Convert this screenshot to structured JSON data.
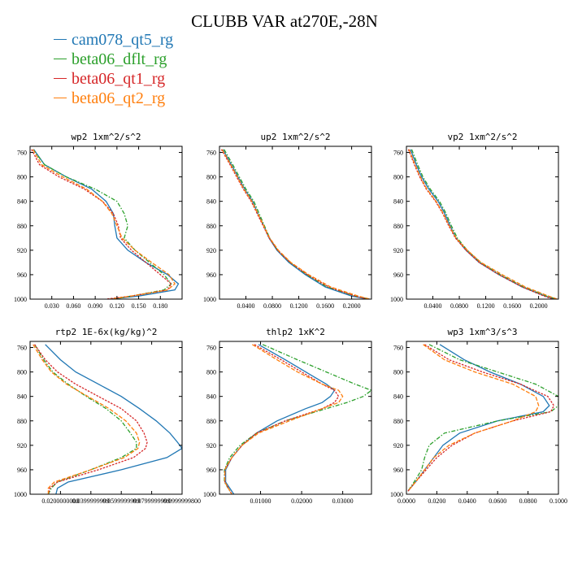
{
  "title": "CLUBB VAR at270E,-28N",
  "legend": [
    {
      "name": "cam078_qt5_rg",
      "color": "#2077b4"
    },
    {
      "name": "beta06_dflt_rg",
      "color": "#2ca02c"
    },
    {
      "name": "beta06_qt1_rg",
      "color": "#d62728"
    },
    {
      "name": "beta06_qt2_rg",
      "color": "#ff7f0e"
    }
  ],
  "chart_data": [
    {
      "type": "line",
      "title": "wp2   1xm^2/s^2",
      "xlim": [
        0.0,
        0.21
      ],
      "ylim": [
        1000,
        750
      ],
      "xticks": [
        "0.030",
        "0.060",
        "0.090",
        "0.120",
        "0.150",
        "0.180"
      ],
      "xtick_values": [
        0.03,
        0.06,
        0.09,
        0.12,
        0.15,
        0.18
      ],
      "yticks": [
        "760",
        "800",
        "840",
        "880",
        "920",
        "960",
        "1000"
      ],
      "y": [
        755,
        780,
        800,
        820,
        840,
        860,
        880,
        900,
        920,
        940,
        960,
        975,
        985,
        995,
        1000
      ],
      "series": [
        {
          "name": "cam078_qt5_rg",
          "x": [
            0.005,
            0.02,
            0.05,
            0.085,
            0.105,
            0.115,
            0.117,
            0.12,
            0.135,
            0.16,
            0.19,
            0.205,
            0.2,
            0.15,
            0.11
          ]
        },
        {
          "name": "beta06_dflt_rg",
          "x": [
            0.004,
            0.02,
            0.05,
            0.09,
            0.12,
            0.13,
            0.135,
            0.13,
            0.145,
            0.165,
            0.185,
            0.195,
            0.185,
            0.14,
            0.115
          ]
        },
        {
          "name": "beta06_qt1_rg",
          "x": [
            0.002,
            0.013,
            0.04,
            0.075,
            0.1,
            0.115,
            0.122,
            0.125,
            0.14,
            0.16,
            0.18,
            0.195,
            0.19,
            0.14,
            0.105
          ]
        },
        {
          "name": "beta06_qt2_rg",
          "x": [
            0.004,
            0.016,
            0.045,
            0.078,
            0.1,
            0.113,
            0.12,
            0.127,
            0.145,
            0.168,
            0.192,
            0.2,
            0.19,
            0.14,
            0.11
          ]
        }
      ]
    },
    {
      "type": "line",
      "title": "up2   1xm^2/s^2",
      "xlim": [
        0.0,
        0.23
      ],
      "ylim": [
        1000,
        750
      ],
      "xticks": [
        "0.0400",
        "0.0800",
        "0.1200",
        "0.1600",
        "0.2000"
      ],
      "xtick_values": [
        0.04,
        0.08,
        0.12,
        0.16,
        0.2
      ],
      "yticks": [
        "760",
        "800",
        "840",
        "880",
        "920",
        "960",
        "1000"
      ],
      "y": [
        755,
        780,
        800,
        820,
        840,
        860,
        880,
        900,
        920,
        940,
        960,
        980,
        995,
        1000
      ],
      "series": [
        {
          "name": "cam078_qt5_rg",
          "x": [
            0.005,
            0.018,
            0.028,
            0.038,
            0.05,
            0.058,
            0.067,
            0.075,
            0.087,
            0.105,
            0.13,
            0.16,
            0.2,
            0.225
          ]
        },
        {
          "name": "beta06_dflt_rg",
          "x": [
            0.007,
            0.02,
            0.03,
            0.04,
            0.052,
            0.06,
            0.068,
            0.076,
            0.088,
            0.107,
            0.132,
            0.163,
            0.205,
            0.228
          ]
        },
        {
          "name": "beta06_qt1_rg",
          "x": [
            0.003,
            0.016,
            0.026,
            0.036,
            0.048,
            0.057,
            0.066,
            0.075,
            0.088,
            0.107,
            0.133,
            0.165,
            0.205,
            0.225
          ]
        },
        {
          "name": "beta06_qt2_rg",
          "x": [
            0.004,
            0.017,
            0.027,
            0.037,
            0.049,
            0.058,
            0.067,
            0.076,
            0.089,
            0.108,
            0.135,
            0.168,
            0.21,
            0.228
          ]
        }
      ]
    },
    {
      "type": "line",
      "title": "vp2   1xm^2/s^2",
      "xlim": [
        0.0,
        0.23
      ],
      "ylim": [
        1000,
        750
      ],
      "xticks": [
        "0.0400",
        "0.0800",
        "0.1200",
        "0.1600",
        "0.2000"
      ],
      "xtick_values": [
        0.04,
        0.08,
        0.12,
        0.16,
        0.2
      ],
      "yticks": [
        "760",
        "800",
        "840",
        "880",
        "920",
        "960",
        "1000"
      ],
      "y": [
        755,
        780,
        800,
        820,
        840,
        860,
        880,
        900,
        920,
        940,
        960,
        980,
        995,
        1000
      ],
      "series": [
        {
          "name": "cam078_qt5_rg",
          "x": [
            0.006,
            0.015,
            0.023,
            0.034,
            0.048,
            0.058,
            0.066,
            0.075,
            0.09,
            0.11,
            0.14,
            0.175,
            0.21,
            0.225
          ]
        },
        {
          "name": "beta06_dflt_rg",
          "x": [
            0.008,
            0.017,
            0.025,
            0.036,
            0.05,
            0.06,
            0.068,
            0.077,
            0.092,
            0.112,
            0.142,
            0.177,
            0.212,
            0.228
          ]
        },
        {
          "name": "beta06_qt1_rg",
          "x": [
            0.003,
            0.012,
            0.02,
            0.03,
            0.044,
            0.055,
            0.064,
            0.074,
            0.09,
            0.11,
            0.14,
            0.175,
            0.208,
            0.222
          ]
        },
        {
          "name": "beta06_qt2_rg",
          "x": [
            0.004,
            0.013,
            0.021,
            0.031,
            0.045,
            0.056,
            0.065,
            0.075,
            0.092,
            0.113,
            0.145,
            0.18,
            0.215,
            0.228
          ]
        }
      ]
    },
    {
      "type": "line",
      "title": "rtp2   1E-6x(kg/kg)^2",
      "xlim": [
        0.0,
        0.1
      ],
      "ylim": [
        1000,
        750
      ],
      "xticks": [
        "0.0200000000",
        "0.0399999999",
        "0.0599999999",
        "0.0799999999",
        "0.0999999800"
      ],
      "xtick_values": [
        0.02,
        0.04,
        0.06,
        0.08,
        0.1
      ],
      "yticks": [
        "760",
        "800",
        "840",
        "880",
        "920",
        "960",
        "1000"
      ],
      "y": [
        755,
        780,
        800,
        820,
        840,
        860,
        880,
        900,
        915,
        925,
        940,
        960,
        980,
        990,
        1000
      ],
      "series": [
        {
          "name": "cam078_qt5_rg",
          "x": [
            0.01,
            0.02,
            0.03,
            0.045,
            0.06,
            0.072,
            0.083,
            0.092,
            0.097,
            0.1,
            0.09,
            0.06,
            0.025,
            0.018,
            0.017
          ]
        },
        {
          "name": "beta06_dflt_rg",
          "x": [
            0.003,
            0.009,
            0.015,
            0.025,
            0.037,
            0.05,
            0.06,
            0.066,
            0.07,
            0.07,
            0.06,
            0.04,
            0.018,
            0.014,
            0.012
          ]
        },
        {
          "name": "beta06_qt1_rg",
          "x": [
            0.003,
            0.01,
            0.018,
            0.03,
            0.045,
            0.06,
            0.07,
            0.075,
            0.077,
            0.076,
            0.068,
            0.045,
            0.018,
            0.013,
            0.012
          ]
        },
        {
          "name": "beta06_qt2_rg",
          "x": [
            0.002,
            0.008,
            0.014,
            0.024,
            0.038,
            0.052,
            0.063,
            0.07,
            0.072,
            0.071,
            0.062,
            0.04,
            0.016,
            0.012,
            0.012
          ]
        }
      ]
    },
    {
      "type": "line",
      "title": "thlp2   1xK^2",
      "xlim": [
        0.0,
        0.037
      ],
      "ylim": [
        1000,
        750
      ],
      "xticks": [
        "0.01000",
        "0.02000",
        "0.03000"
      ],
      "xtick_values": [
        0.01,
        0.02,
        0.03
      ],
      "yticks": [
        "760",
        "800",
        "840",
        "880",
        "920",
        "960",
        "1000"
      ],
      "y": [
        755,
        780,
        800,
        820,
        830,
        840,
        850,
        860,
        880,
        900,
        920,
        940,
        960,
        980,
        1000
      ],
      "series": [
        {
          "name": "cam078_qt5_rg",
          "x": [
            0.0095,
            0.016,
            0.021,
            0.026,
            0.028,
            0.027,
            0.025,
            0.021,
            0.014,
            0.009,
            0.0055,
            0.003,
            0.0015,
            0.0015,
            0.0035
          ]
        },
        {
          "name": "beta06_dflt_rg",
          "x": [
            0.0105,
            0.019,
            0.026,
            0.033,
            0.037,
            0.035,
            0.031,
            0.026,
            0.016,
            0.009,
            0.005,
            0.0025,
            0.0012,
            0.0012,
            0.003
          ]
        },
        {
          "name": "beta06_qt1_rg",
          "x": [
            0.0085,
            0.015,
            0.02,
            0.025,
            0.028,
            0.029,
            0.028,
            0.025,
            0.016,
            0.009,
            0.0055,
            0.003,
            0.0013,
            0.0013,
            0.003
          ]
        },
        {
          "name": "beta06_qt2_rg",
          "x": [
            0.008,
            0.014,
            0.019,
            0.025,
            0.029,
            0.03,
            0.029,
            0.025,
            0.017,
            0.0095,
            0.0055,
            0.003,
            0.0013,
            0.0013,
            0.003
          ]
        }
      ]
    },
    {
      "type": "line",
      "title": "wp3   1xm^3/s^3",
      "xlim": [
        0.0,
        0.1
      ],
      "ylim": [
        1000,
        750
      ],
      "xticks": [
        "0.0000",
        "0.0200",
        "0.0400",
        "0.0600",
        "0.0800",
        "0.1000"
      ],
      "xtick_values": [
        0.0,
        0.02,
        0.04,
        0.06,
        0.08,
        0.1
      ],
      "yticks": [
        "760",
        "800",
        "840",
        "880",
        "920",
        "960",
        "1000"
      ],
      "y": [
        755,
        780,
        800,
        820,
        840,
        855,
        865,
        880,
        900,
        920,
        940,
        960,
        980,
        995
      ],
      "series": [
        {
          "name": "cam078_qt5_rg",
          "x": [
            0.022,
            0.038,
            0.055,
            0.075,
            0.09,
            0.094,
            0.09,
            0.06,
            0.035,
            0.024,
            0.018,
            0.012,
            0.006,
            0.001
          ]
        },
        {
          "name": "beta06_dflt_rg",
          "x": [
            0.015,
            0.035,
            0.06,
            0.085,
            0.1,
            0.1,
            0.095,
            0.06,
            0.025,
            0.015,
            0.012,
            0.01,
            0.005,
            0.001
          ]
        },
        {
          "name": "beta06_qt1_rg",
          "x": [
            0.012,
            0.028,
            0.05,
            0.075,
            0.093,
            0.097,
            0.095,
            0.07,
            0.045,
            0.03,
            0.02,
            0.013,
            0.006,
            0.001
          ]
        },
        {
          "name": "beta06_qt2_rg",
          "x": [
            0.011,
            0.025,
            0.045,
            0.07,
            0.085,
            0.087,
            0.085,
            0.07,
            0.045,
            0.028,
            0.018,
            0.012,
            0.006,
            0.001
          ]
        }
      ]
    }
  ]
}
